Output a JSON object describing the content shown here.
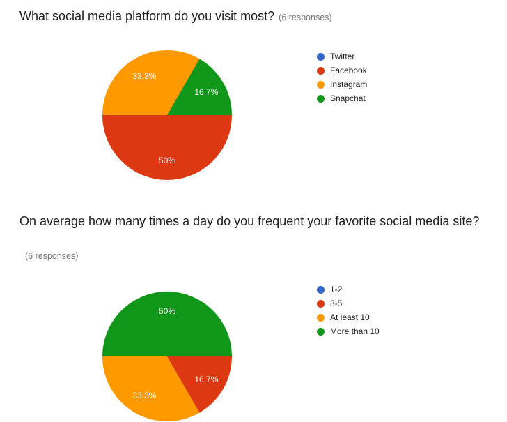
{
  "chart_data": [
    {
      "type": "pie",
      "title": "What social media platform do you visit most?",
      "subtitle": "(6 responses)",
      "categories": [
        "Twitter",
        "Facebook",
        "Instagram",
        "Snapchat"
      ],
      "values": [
        0,
        3,
        2,
        1
      ],
      "percent_labels": [
        "",
        "50%",
        "33.3%",
        "16.7%"
      ],
      "colors": [
        "#3366CC",
        "#DC3912",
        "#FF9900",
        "#109618"
      ],
      "legend_position": "right",
      "rotation_deg": 90,
      "direction": "clockwise"
    },
    {
      "type": "pie",
      "title": "On average how many times a day do you frequent your favorite social media site?",
      "subtitle": "(6 responses)",
      "categories": [
        "1-2",
        "3-5",
        "At least 10",
        "More than 10"
      ],
      "values": [
        0,
        1,
        2,
        3
      ],
      "percent_labels": [
        "",
        "16.7%",
        "33.3%",
        "50%"
      ],
      "colors": [
        "#3366CC",
        "#DC3912",
        "#FF9900",
        "#109618"
      ],
      "legend_position": "right",
      "rotation_deg": 90,
      "direction": "clockwise"
    }
  ]
}
